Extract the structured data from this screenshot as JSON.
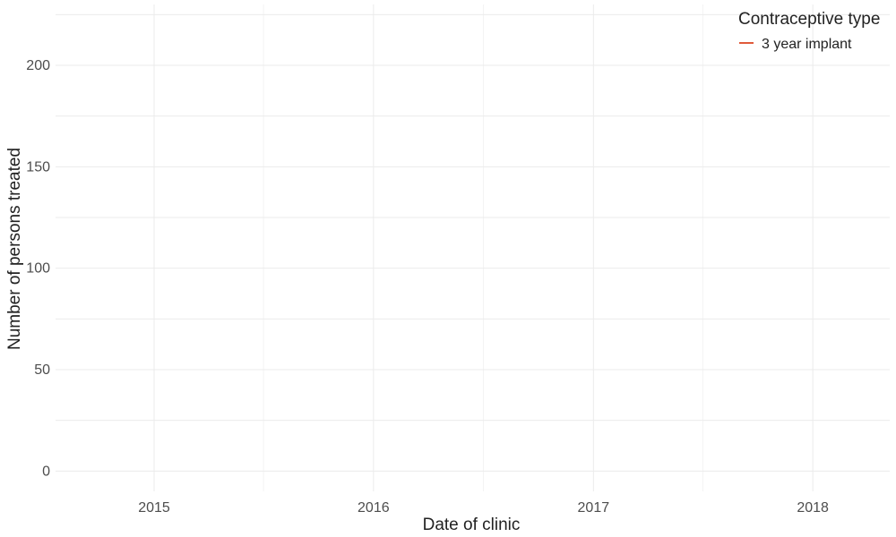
{
  "chart_data": {
    "type": "line",
    "title": "",
    "xlabel": "Date of clinic",
    "ylabel": "Number of persons treated",
    "x_ticks": [
      "2015",
      "2016",
      "2017",
      "2018"
    ],
    "y_ticks": [
      0,
      50,
      100,
      150,
      200
    ],
    "xlim": [
      "2014-07-21",
      "2018-05-09"
    ],
    "ylim": [
      -10,
      230
    ],
    "grid": true,
    "legend": {
      "title": "Contraceptive type",
      "position": "top-right",
      "entries": [
        {
          "label": "3 year implant",
          "color": "#e05a3a"
        }
      ]
    },
    "series": [
      {
        "name": "3 year implant",
        "color": "#e05a3a",
        "points": []
      }
    ]
  }
}
